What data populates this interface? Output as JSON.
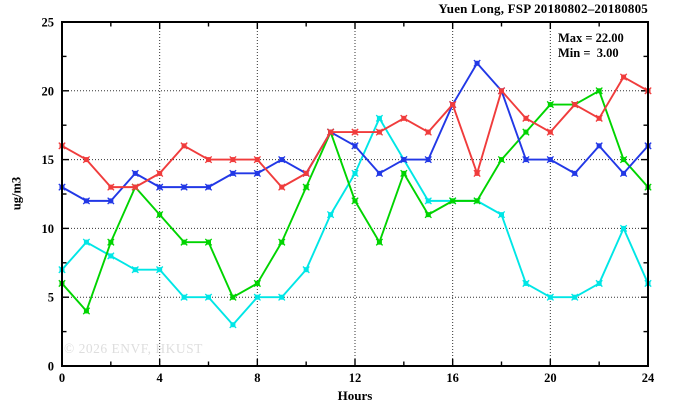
{
  "chart_data": {
    "type": "line",
    "title": "Yuen Long, FSP 20180802–20180805",
    "xlabel": "Hours",
    "ylabel": "ug/m3",
    "xlim": [
      0,
      24
    ],
    "ylim": [
      0,
      25
    ],
    "x_major_ticks": [
      0,
      4,
      8,
      12,
      16,
      20,
      24
    ],
    "x_minor_step": 2,
    "y_major_ticks": [
      0,
      5,
      10,
      15,
      20,
      25
    ],
    "y_minor_step": 2.5,
    "grid": "dotted lines at major ticks",
    "legend_position": "none",
    "hours": [
      0,
      1,
      2,
      3,
      4,
      5,
      6,
      7,
      8,
      9,
      10,
      11,
      12,
      13,
      14,
      15,
      16,
      17,
      18,
      19,
      20,
      21,
      22,
      23,
      24
    ],
    "series": [
      {
        "name": "red",
        "color": "#f03c3c",
        "values": [
          16,
          15,
          13,
          13,
          14,
          16,
          15,
          15,
          15,
          13,
          14,
          17,
          17,
          17,
          18,
          17,
          19,
          14,
          20,
          18,
          17,
          19,
          18,
          21,
          20
        ]
      },
      {
        "name": "blue",
        "color": "#2238e6",
        "values": [
          13,
          12,
          12,
          14,
          13,
          13,
          13,
          14,
          14,
          15,
          14,
          17,
          16,
          14,
          15,
          15,
          19,
          22,
          20,
          15,
          15,
          14,
          16,
          14,
          16
        ]
      },
      {
        "name": "green",
        "color": "#00d400",
        "values": [
          6,
          4,
          9,
          13,
          11,
          9,
          9,
          5,
          6,
          9,
          13,
          17,
          12,
          9,
          14,
          11,
          12,
          12,
          15,
          17,
          19,
          19,
          20,
          15,
          13
        ]
      },
      {
        "name": "cyan",
        "color": "#00e6e6",
        "values": [
          7,
          9,
          8,
          7,
          7,
          5,
          5,
          3,
          5,
          5,
          7,
          11,
          14,
          18,
          15,
          12,
          12,
          12,
          11,
          6,
          5,
          5,
          6,
          10,
          6
        ]
      }
    ],
    "annotations": {
      "max_value": 22.0,
      "min_value": 3.0,
      "max_line": "Max = 22.00",
      "min_line": "Min =  3.00"
    },
    "watermark": "© 2026 ENVF, HKUST",
    "axis_color": "#000000",
    "grid_color": "#333333"
  }
}
